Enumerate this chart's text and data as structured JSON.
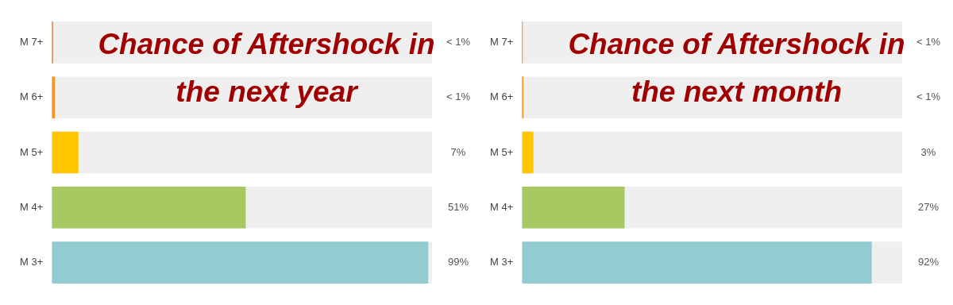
{
  "chart_data": [
    {
      "type": "bar",
      "orientation": "horizontal",
      "title": "Chance of Aftershock in the next year",
      "categories": [
        "M 7+",
        "M 6+",
        "M 5+",
        "M 4+",
        "M 3+"
      ],
      "values": [
        0.3,
        0.8,
        7,
        51,
        99
      ],
      "value_labels": [
        "< 1%",
        "< 1%",
        "7%",
        "51%",
        "99%"
      ],
      "colors": [
        "#e0662a",
        "#f7941d",
        "#ffc600",
        "#a8c961",
        "#92cbd0"
      ],
      "xlim": [
        0,
        100
      ],
      "tick_labels": "y",
      "grid": false,
      "legend": false
    },
    {
      "type": "bar",
      "orientation": "horizontal",
      "title": "Chance of Aftershock in the next month",
      "categories": [
        "M 7+",
        "M 6+",
        "M 5+",
        "M 4+",
        "M 3+"
      ],
      "values": [
        0.2,
        0.4,
        3,
        27,
        92
      ],
      "value_labels": [
        "< 1%",
        "< 1%",
        "3%",
        "27%",
        "92%"
      ],
      "colors": [
        "#e0662a",
        "#f7941d",
        "#ffc600",
        "#a8c961",
        "#92cbd0"
      ],
      "xlim": [
        0,
        100
      ],
      "tick_labels": "y",
      "grid": false,
      "legend": false
    }
  ]
}
